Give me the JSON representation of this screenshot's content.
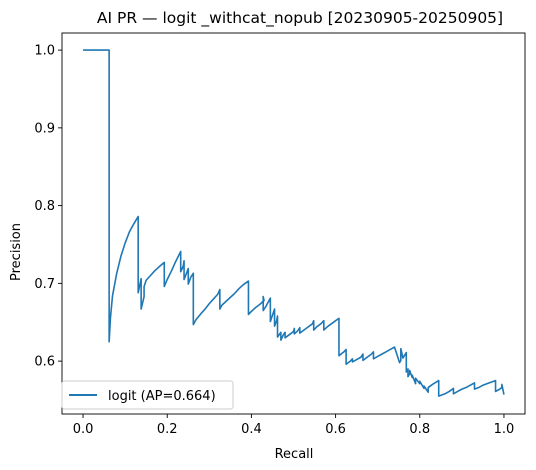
{
  "chart_data": {
    "type": "line",
    "title": "AI PR — logit _withcat_nopub [20230905-20250905]",
    "xlabel": "Recall",
    "ylabel": "Precision",
    "xlim": [
      -0.05,
      1.05
    ],
    "ylim": [
      0.532,
      1.022
    ],
    "xticks": [
      0.0,
      0.2,
      0.4,
      0.6,
      0.8,
      1.0
    ],
    "xtick_labels": [
      "0.0",
      "0.2",
      "0.4",
      "0.6",
      "0.8",
      "1.0"
    ],
    "yticks": [
      0.6,
      0.7,
      0.8,
      0.9,
      1.0
    ],
    "ytick_labels": [
      "0.6",
      "0.7",
      "0.8",
      "0.9",
      "1.0"
    ],
    "grid": false,
    "legend_position": "lower-left",
    "series": [
      {
        "name": "logit (AP=0.664)",
        "color": "#1f77b4",
        "x": [
          0.0,
          0.062,
          0.062,
          0.065,
          0.07,
          0.08,
          0.09,
          0.1,
          0.11,
          0.12,
          0.131,
          0.131,
          0.138,
          0.138,
          0.145,
          0.145,
          0.15,
          0.16,
          0.17,
          0.18,
          0.193,
          0.193,
          0.2,
          0.21,
          0.22,
          0.232,
          0.232,
          0.238,
          0.24,
          0.24,
          0.245,
          0.25,
          0.25,
          0.256,
          0.262,
          0.262,
          0.268,
          0.28,
          0.29,
          0.3,
          0.31,
          0.32,
          0.325,
          0.325,
          0.33,
          0.34,
          0.35,
          0.36,
          0.37,
          0.38,
          0.393,
          0.393,
          0.4,
          0.41,
          0.42,
          0.43,
          0.428,
          0.428,
          0.435,
          0.44,
          0.445,
          0.445,
          0.455,
          0.455,
          0.46,
          0.462,
          0.462,
          0.47,
          0.47,
          0.476,
          0.48,
          0.48,
          0.49,
          0.5,
          0.502,
          0.502,
          0.51,
          0.515,
          0.515,
          0.525,
          0.535,
          0.545,
          0.548,
          0.548,
          0.555,
          0.565,
          0.572,
          0.572,
          0.58,
          0.59,
          0.6,
          0.608,
          0.608,
          0.62,
          0.625,
          0.625,
          0.635,
          0.64,
          0.64,
          0.65,
          0.66,
          0.665,
          0.665,
          0.675,
          0.685,
          0.69,
          0.69,
          0.7,
          0.71,
          0.72,
          0.73,
          0.74,
          0.752,
          0.755,
          0.755,
          0.76,
          0.768,
          0.768,
          0.772,
          0.772,
          0.776,
          0.776,
          0.782,
          0.782,
          0.79,
          0.79,
          0.8,
          0.8,
          0.81,
          0.81,
          0.82,
          0.82,
          0.83,
          0.845,
          0.845,
          0.86,
          0.87,
          0.88,
          0.88,
          0.89,
          0.9,
          0.91,
          0.92,
          0.93,
          0.93,
          0.94,
          0.95,
          0.96,
          0.97,
          0.98,
          0.98,
          0.99,
          0.995,
          0.995,
          1.0
        ],
        "y": [
          1.0,
          1.0,
          0.625,
          0.655,
          0.684,
          0.713,
          0.735,
          0.752,
          0.766,
          0.776,
          0.786,
          0.688,
          0.706,
          0.667,
          0.683,
          0.696,
          0.704,
          0.71,
          0.716,
          0.721,
          0.727,
          0.696,
          0.705,
          0.716,
          0.728,
          0.741,
          0.715,
          0.722,
          0.729,
          0.705,
          0.712,
          0.719,
          0.699,
          0.708,
          0.713,
          0.647,
          0.653,
          0.661,
          0.667,
          0.674,
          0.68,
          0.686,
          0.692,
          0.667,
          0.672,
          0.677,
          0.682,
          0.687,
          0.693,
          0.698,
          0.703,
          0.66,
          0.664,
          0.669,
          0.673,
          0.678,
          0.683,
          0.665,
          0.671,
          0.676,
          0.681,
          0.651,
          0.667,
          0.645,
          0.652,
          0.658,
          0.631,
          0.637,
          0.627,
          0.634,
          0.637,
          0.63,
          0.634,
          0.638,
          0.642,
          0.635,
          0.639,
          0.643,
          0.636,
          0.64,
          0.644,
          0.648,
          0.652,
          0.64,
          0.644,
          0.648,
          0.652,
          0.64,
          0.644,
          0.648,
          0.652,
          0.655,
          0.607,
          0.612,
          0.615,
          0.596,
          0.6,
          0.603,
          0.599,
          0.602,
          0.605,
          0.609,
          0.601,
          0.605,
          0.609,
          0.612,
          0.603,
          0.606,
          0.609,
          0.612,
          0.615,
          0.618,
          0.598,
          0.601,
          0.616,
          0.604,
          0.611,
          0.586,
          0.59,
          0.58,
          0.584,
          0.588,
          0.579,
          0.582,
          0.571,
          0.578,
          0.571,
          0.574,
          0.565,
          0.568,
          0.56,
          0.566,
          0.57,
          0.575,
          0.555,
          0.558,
          0.561,
          0.565,
          0.558,
          0.561,
          0.564,
          0.566,
          0.569,
          0.572,
          0.564,
          0.566,
          0.569,
          0.571,
          0.573,
          0.575,
          0.561,
          0.564,
          0.566,
          0.57,
          0.557
        ]
      }
    ]
  }
}
